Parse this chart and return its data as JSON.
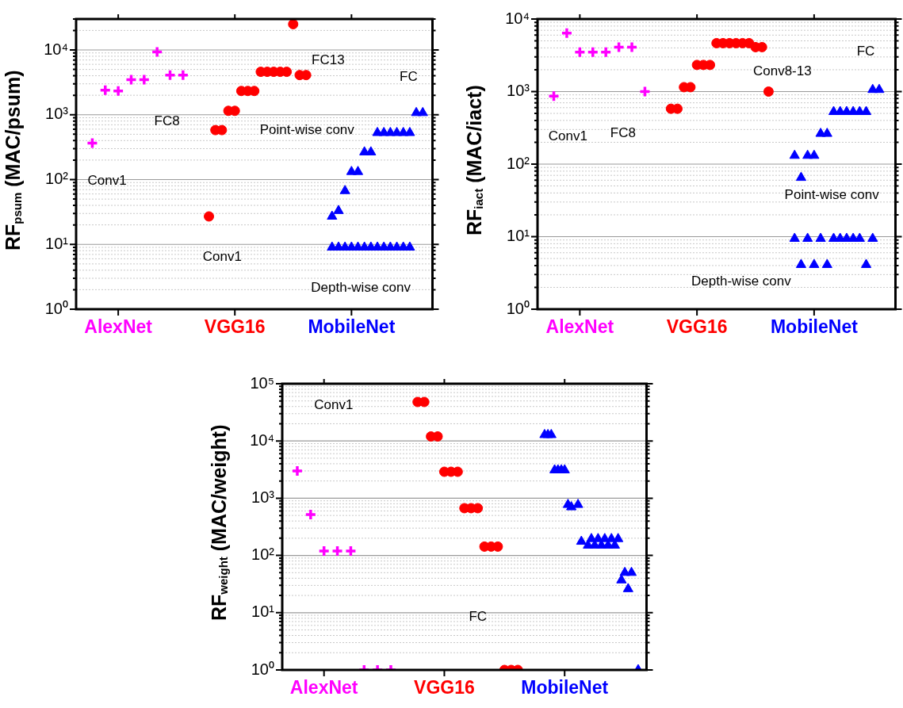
{
  "chart_data": [
    {
      "type": "scatter",
      "ylabel": "RF$_{psum}$ (MAC/psum)",
      "log": true,
      "grid": "y",
      "legend": false,
      "categories": [
        null,
        null,
        null,
        null,
        null,
        null,
        "AlexNet",
        null,
        null,
        null,
        null,
        null,
        null,
        null,
        null,
        null,
        null,
        null,
        null,
        null,
        null,
        null,
        null,
        null,
        "VGG16",
        null,
        null,
        null,
        null,
        null,
        null,
        null,
        null,
        null,
        null,
        null,
        null,
        null,
        null,
        null,
        null,
        null,
        "MobileNet",
        null,
        null,
        null,
        null,
        null,
        null,
        null,
        null,
        null,
        null,
        null,
        null
      ],
      "ylim": [
        1,
        30000
      ],
      "yticks": [
        {
          "value": 1,
          "label": "10⁰"
        },
        {
          "value": 2,
          "label": null
        },
        {
          "value": 3,
          "label": null
        },
        {
          "value": 4,
          "label": null
        },
        {
          "value": 5,
          "label": null
        },
        {
          "value": 6,
          "label": null
        },
        {
          "value": 7,
          "label": null
        },
        {
          "value": 8,
          "label": null
        },
        {
          "value": 9,
          "label": null
        },
        {
          "value": 10,
          "label": "10¹"
        },
        {
          "value": 20,
          "label": null
        },
        {
          "value": 30,
          "label": null
        },
        {
          "value": 40,
          "label": null
        },
        {
          "value": 50,
          "label": null
        },
        {
          "value": 60,
          "label": null
        },
        {
          "value": 70,
          "label": null
        },
        {
          "value": 80,
          "label": null
        },
        {
          "value": 90,
          "label": null
        },
        {
          "value": 100,
          "label": "10²"
        },
        {
          "value": 200,
          "label": null
        },
        {
          "value": 300,
          "label": null
        },
        {
          "value": 400,
          "label": null
        },
        {
          "value": 500,
          "label": null
        },
        {
          "value": 600,
          "label": null
        },
        {
          "value": 700,
          "label": null
        },
        {
          "value": 800,
          "label": null
        },
        {
          "value": 900,
          "label": null
        },
        {
          "value": 1000,
          "label": "10³"
        },
        {
          "value": 2000,
          "label": null
        },
        {
          "value": 3000,
          "label": null
        },
        {
          "value": 4000,
          "label": null
        },
        {
          "value": 5000,
          "label": null
        },
        {
          "value": 6000,
          "label": null
        },
        {
          "value": 7000,
          "label": null
        },
        {
          "value": 8000,
          "label": null
        },
        {
          "value": 9000,
          "label": null
        },
        {
          "value": 10000,
          "label": "10⁴"
        },
        {
          "value": 20000,
          "label": null
        },
        {
          "value": 30000,
          "label": null
        }
      ],
      "annotations": [
        "Conv1",
        "FC8",
        "FC13",
        "FC",
        "Point-wise conv",
        "Conv1",
        "Depth-wise conv"
      ],
      "series": [
        {
          "color": "#ff00ff",
          "marker": "cross",
          "values": [
            null,
            null,
            365,
            null,
            2400,
            null,
            2330,
            null,
            3480,
            null,
            3480,
            null,
            9300,
            null,
            4100,
            null,
            4100,
            null,
            null,
            null,
            null,
            null,
            null,
            null,
            null,
            null,
            null,
            null,
            null,
            null,
            null,
            null,
            null,
            null,
            null,
            null,
            null,
            null,
            null,
            null,
            null,
            null,
            null,
            null,
            null,
            null,
            null,
            null,
            null,
            null,
            null,
            null,
            null,
            null,
            null
          ]
        },
        {
          "color": "#ff0000",
          "marker": "circle",
          "values": [
            null,
            null,
            null,
            null,
            null,
            null,
            null,
            null,
            null,
            null,
            null,
            null,
            null,
            null,
            null,
            null,
            null,
            null,
            null,
            null,
            27,
            580,
            580,
            1150,
            1150,
            2330,
            2330,
            2330,
            4600,
            4600,
            4600,
            4600,
            4600,
            25000,
            4100,
            4100,
            null,
            null,
            null,
            null,
            null,
            null,
            null,
            null,
            null,
            null,
            null,
            null,
            null,
            null,
            null,
            null,
            null,
            null,
            null
          ]
        },
        {
          "color": "#0000ff",
          "marker": "triangle",
          "values": [
            null,
            null,
            null,
            null,
            null,
            null,
            null,
            null,
            null,
            null,
            null,
            null,
            null,
            null,
            null,
            null,
            null,
            null,
            null,
            null,
            null,
            null,
            null,
            null,
            null,
            null,
            null,
            null,
            null,
            null,
            null,
            null,
            null,
            null,
            null,
            null,
            null,
            null,
            null,
            27,
            33,
            67,
            132,
            132,
            265,
            265,
            527,
            527,
            527,
            527,
            527,
            527,
            1070,
            1070,
            null
          ]
        },
        {
          "color": "#0000ff",
          "marker": "triangle",
          "values": [
            null,
            null,
            null,
            null,
            null,
            null,
            null,
            null,
            null,
            null,
            null,
            null,
            null,
            null,
            null,
            null,
            null,
            null,
            null,
            null,
            null,
            null,
            null,
            null,
            null,
            null,
            null,
            null,
            null,
            null,
            null,
            null,
            null,
            null,
            null,
            null,
            null,
            null,
            null,
            9,
            9,
            9,
            9,
            9,
            9,
            9,
            9,
            9,
            9,
            9,
            9,
            9,
            null,
            null,
            null
          ]
        }
      ]
    },
    {
      "type": "scatter",
      "ylabel": "RF$_{iact}$ (MAC/iact)",
      "log": true,
      "grid": "y",
      "legend": false,
      "categories": [
        null,
        null,
        null,
        null,
        null,
        null,
        "AlexNet",
        null,
        null,
        null,
        null,
        null,
        null,
        null,
        null,
        null,
        null,
        null,
        null,
        null,
        null,
        null,
        null,
        null,
        "VGG16",
        null,
        null,
        null,
        null,
        null,
        null,
        null,
        null,
        null,
        null,
        null,
        null,
        null,
        null,
        null,
        null,
        null,
        "MobileNet",
        null,
        null,
        null,
        null,
        null,
        null,
        null,
        null,
        null,
        null,
        null,
        null
      ],
      "ylim": [
        1,
        10000
      ],
      "yticks": [
        {
          "value": 1,
          "label": "10⁰"
        },
        {
          "value": 2,
          "label": null
        },
        {
          "value": 3,
          "label": null
        },
        {
          "value": 4,
          "label": null
        },
        {
          "value": 5,
          "label": null
        },
        {
          "value": 6,
          "label": null
        },
        {
          "value": 7,
          "label": null
        },
        {
          "value": 8,
          "label": null
        },
        {
          "value": 9,
          "label": null
        },
        {
          "value": 10,
          "label": "10¹"
        },
        {
          "value": 20,
          "label": null
        },
        {
          "value": 30,
          "label": null
        },
        {
          "value": 40,
          "label": null
        },
        {
          "value": 50,
          "label": null
        },
        {
          "value": 60,
          "label": null
        },
        {
          "value": 70,
          "label": null
        },
        {
          "value": 80,
          "label": null
        },
        {
          "value": 90,
          "label": null
        },
        {
          "value": 100,
          "label": "10²"
        },
        {
          "value": 200,
          "label": null
        },
        {
          "value": 300,
          "label": null
        },
        {
          "value": 400,
          "label": null
        },
        {
          "value": 500,
          "label": null
        },
        {
          "value": 600,
          "label": null
        },
        {
          "value": 700,
          "label": null
        },
        {
          "value": 800,
          "label": null
        },
        {
          "value": 900,
          "label": null
        },
        {
          "value": 1000,
          "label": "10³"
        },
        {
          "value": 2000,
          "label": null
        },
        {
          "value": 3000,
          "label": null
        },
        {
          "value": 4000,
          "label": null
        },
        {
          "value": 5000,
          "label": null
        },
        {
          "value": 6000,
          "label": null
        },
        {
          "value": 7000,
          "label": null
        },
        {
          "value": 8000,
          "label": null
        },
        {
          "value": 9000,
          "label": null
        },
        {
          "value": 10000,
          "label": "10⁴"
        }
      ],
      "annotations": [
        "Conv1",
        "FC8",
        "Conv8-13",
        "FC",
        "Point-wise conv",
        "Depth-wise conv"
      ],
      "series": [
        {
          "color": "#ff00ff",
          "marker": "cross",
          "values": [
            null,
            null,
            865,
            null,
            6400,
            null,
            3500,
            null,
            3500,
            null,
            3500,
            null,
            4100,
            null,
            4100,
            null,
            1000,
            null,
            null,
            null,
            null,
            null,
            null,
            null,
            null,
            null,
            null,
            null,
            null,
            null,
            null,
            null,
            null,
            null,
            null,
            null,
            null,
            null,
            null,
            null,
            null,
            null,
            null,
            null,
            null,
            null,
            null,
            null,
            null,
            null,
            null,
            null,
            null,
            null,
            null
          ]
        },
        {
          "color": "#ff0000",
          "marker": "circle",
          "values": [
            null,
            null,
            null,
            null,
            null,
            null,
            null,
            null,
            null,
            null,
            null,
            null,
            null,
            null,
            null,
            null,
            null,
            null,
            null,
            null,
            580,
            580,
            1150,
            1150,
            2330,
            2330,
            2330,
            4650,
            4650,
            4650,
            4650,
            4650,
            4650,
            4100,
            4100,
            1000,
            null,
            null,
            null,
            null,
            null,
            null,
            null,
            null,
            null,
            null,
            null,
            null,
            null,
            null,
            null,
            null,
            null,
            null,
            null
          ]
        },
        {
          "color": "#0000ff",
          "marker": "triangle",
          "values": [
            null,
            null,
            null,
            null,
            null,
            null,
            null,
            null,
            null,
            null,
            null,
            null,
            null,
            null,
            null,
            null,
            null,
            null,
            null,
            null,
            null,
            null,
            null,
            null,
            null,
            null,
            null,
            null,
            null,
            null,
            null,
            null,
            null,
            null,
            null,
            null,
            null,
            null,
            null,
            131,
            65,
            131,
            131,
            263,
            263,
            526,
            526,
            526,
            526,
            526,
            526,
            1060,
            1060,
            null,
            null
          ]
        },
        {
          "color": "#0000ff",
          "marker": "triangle",
          "values": [
            null,
            null,
            null,
            null,
            null,
            null,
            null,
            null,
            null,
            null,
            null,
            null,
            null,
            null,
            null,
            null,
            null,
            null,
            null,
            null,
            null,
            null,
            null,
            null,
            null,
            null,
            null,
            null,
            null,
            null,
            null,
            null,
            null,
            null,
            null,
            null,
            null,
            null,
            null,
            9.4,
            4.1,
            9.4,
            4.1,
            9.4,
            4.1,
            9.4,
            9.4,
            9.4,
            9.4,
            9.4,
            4.1,
            9.4,
            null,
            null,
            null
          ]
        }
      ]
    },
    {
      "type": "scatter",
      "ylabel": "RF$_{weight}$ (MAC/weight)",
      "log": true,
      "grid": "y",
      "legend": false,
      "categories": [
        null,
        null,
        null,
        null,
        null,
        null,
        null,
        null,
        null,
        null,
        null,
        null,
        "AlexNet",
        null,
        null,
        null,
        null,
        null,
        null,
        null,
        null,
        null,
        null,
        null,
        null,
        null,
        null,
        null,
        null,
        null,
        null,
        null,
        null,
        null,
        null,
        null,
        null,
        null,
        null,
        null,
        null,
        null,
        null,
        null,
        null,
        null,
        null,
        null,
        "VGG16",
        null,
        null,
        null,
        null,
        null,
        null,
        null,
        null,
        null,
        null,
        null,
        null,
        null,
        null,
        null,
        null,
        null,
        null,
        null,
        null,
        null,
        null,
        null,
        null,
        null,
        null,
        null,
        null,
        null,
        null,
        null,
        null,
        null,
        null,
        null,
        "MobileNet",
        null,
        null,
        null,
        null,
        null,
        null,
        null,
        null,
        null,
        null,
        null,
        null,
        null,
        null,
        null,
        null,
        null,
        null,
        null,
        null,
        null,
        null,
        null,
        null
      ],
      "ylim": [
        1,
        100000
      ],
      "yticks": [
        {
          "value": 1,
          "label": "10⁰"
        },
        {
          "value": 2,
          "label": null
        },
        {
          "value": 3,
          "label": null
        },
        {
          "value": 4,
          "label": null
        },
        {
          "value": 5,
          "label": null
        },
        {
          "value": 6,
          "label": null
        },
        {
          "value": 7,
          "label": null
        },
        {
          "value": 8,
          "label": null
        },
        {
          "value": 9,
          "label": null
        },
        {
          "value": 10,
          "label": "10¹"
        },
        {
          "value": 20,
          "label": null
        },
        {
          "value": 30,
          "label": null
        },
        {
          "value": 40,
          "label": null
        },
        {
          "value": 50,
          "label": null
        },
        {
          "value": 60,
          "label": null
        },
        {
          "value": 70,
          "label": null
        },
        {
          "value": 80,
          "label": null
        },
        {
          "value": 90,
          "label": null
        },
        {
          "value": 100,
          "label": "10²"
        },
        {
          "value": 200,
          "label": null
        },
        {
          "value": 300,
          "label": null
        },
        {
          "value": 400,
          "label": null
        },
        {
          "value": 500,
          "label": null
        },
        {
          "value": 600,
          "label": null
        },
        {
          "value": 700,
          "label": null
        },
        {
          "value": 800,
          "label": null
        },
        {
          "value": 900,
          "label": null
        },
        {
          "value": 1000,
          "label": "10³"
        },
        {
          "value": 2000,
          "label": null
        },
        {
          "value": 3000,
          "label": null
        },
        {
          "value": 4000,
          "label": null
        },
        {
          "value": 5000,
          "label": null
        },
        {
          "value": 6000,
          "label": null
        },
        {
          "value": 7000,
          "label": null
        },
        {
          "value": 8000,
          "label": null
        },
        {
          "value": 9000,
          "label": null
        },
        {
          "value": 10000,
          "label": "10⁴"
        },
        {
          "value": 20000,
          "label": null
        },
        {
          "value": 30000,
          "label": null
        },
        {
          "value": 40000,
          "label": null
        },
        {
          "value": 50000,
          "label": null
        },
        {
          "value": 60000,
          "label": null
        },
        {
          "value": 70000,
          "label": null
        },
        {
          "value": 80000,
          "label": null
        },
        {
          "value": 90000,
          "label": null
        },
        {
          "value": 100000,
          "label": "10⁵"
        }
      ],
      "annotations": [
        "Conv1",
        "FC"
      ],
      "series": [
        {
          "color": "#ff00ff",
          "marker": "cross",
          "values": [
            null,
            null,
            null,
            null,
            3000,
            null,
            null,
            null,
            520,
            null,
            null,
            null,
            120,
            null,
            null,
            null,
            120,
            null,
            null,
            null,
            120,
            null,
            null,
            null,
            1,
            null,
            null,
            null,
            1,
            null,
            null,
            null,
            1,
            null,
            null,
            null,
            null,
            null,
            null,
            null,
            null,
            null,
            null,
            null,
            null,
            null,
            null,
            null,
            null,
            null,
            null,
            null,
            null,
            null,
            null,
            null,
            null,
            null,
            null,
            null,
            null,
            null,
            null,
            null,
            null,
            null,
            null,
            null,
            null,
            null,
            null,
            null,
            null,
            null,
            null,
            null,
            null,
            null,
            null,
            null,
            null,
            null,
            null,
            null,
            null,
            null,
            null,
            null,
            null,
            null,
            null,
            null,
            null,
            null,
            null,
            null,
            null,
            null,
            null,
            null,
            null,
            null,
            null,
            null,
            null,
            null,
            null,
            null,
            null
          ]
        },
        {
          "color": "#ff0000",
          "marker": "circle",
          "values": [
            null,
            null,
            null,
            null,
            null,
            null,
            null,
            null,
            null,
            null,
            null,
            null,
            null,
            null,
            null,
            null,
            null,
            null,
            null,
            null,
            null,
            null,
            null,
            null,
            null,
            null,
            null,
            null,
            null,
            null,
            null,
            null,
            null,
            null,
            null,
            null,
            null,
            null,
            null,
            null,
            48000,
            null,
            48000,
            null,
            12000,
            null,
            12000,
            null,
            2900,
            null,
            2900,
            null,
            2900,
            null,
            670,
            null,
            670,
            null,
            670,
            null,
            143,
            null,
            143,
            null,
            143,
            null,
            1,
            null,
            1,
            null,
            1,
            null,
            null,
            null,
            null,
            null,
            null,
            null,
            null,
            null,
            null,
            null,
            null,
            null,
            null,
            null,
            null,
            null,
            null,
            null,
            null,
            null,
            null,
            null,
            null,
            null,
            null,
            null,
            null,
            null,
            null,
            null,
            null,
            null,
            null,
            null,
            null,
            null,
            null
          ]
        },
        {
          "color": "#0000ff",
          "marker": "triangle",
          "values": [
            null,
            null,
            null,
            null,
            null,
            null,
            null,
            null,
            null,
            null,
            null,
            null,
            null,
            null,
            null,
            null,
            null,
            null,
            null,
            null,
            null,
            null,
            null,
            null,
            null,
            null,
            null,
            null,
            null,
            null,
            null,
            null,
            null,
            null,
            null,
            null,
            null,
            null,
            null,
            null,
            null,
            null,
            null,
            null,
            null,
            null,
            null,
            null,
            null,
            null,
            null,
            null,
            null,
            null,
            null,
            null,
            null,
            null,
            null,
            null,
            null,
            null,
            null,
            null,
            null,
            null,
            null,
            null,
            null,
            null,
            null,
            null,
            null,
            null,
            null,
            null,
            null,
            null,
            12800,
            12800,
            12800,
            3100,
            3100,
            3100,
            3100,
            770,
            700,
            null,
            770,
            175,
            null,
            150,
            195,
            150,
            195,
            150,
            195,
            150,
            195,
            150,
            195,
            37,
            50,
            26,
            50,
            null,
            1,
            null,
            null
          ]
        }
      ]
    }
  ]
}
